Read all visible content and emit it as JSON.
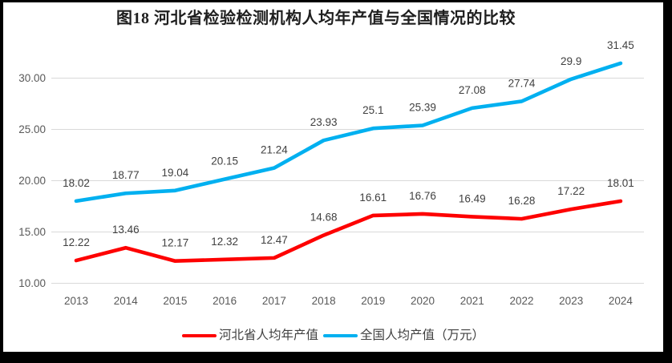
{
  "title": "图18 河北省检验检测机构人均年产值与全国情况的比较",
  "colors": {
    "hebei_red": "#fe0000",
    "national_blue": "#00b0f0",
    "gridline": "#d9d9d9",
    "axis_text": "#595959",
    "data_label_text": "#404040",
    "title_text": "#1f1f1f",
    "frame": "#000000",
    "background": "#ffffff"
  },
  "chart_data": {
    "type": "line",
    "title": "图18 河北省检验检测机构人均年产值与全国情况的比较",
    "categories": [
      "2013",
      "2014",
      "2015",
      "2016",
      "2017",
      "2018",
      "2019",
      "2020",
      "2021",
      "2022",
      "2023",
      "2024"
    ],
    "series": [
      {
        "name": "河北省人均年产值",
        "color": "#fe0000",
        "values": [
          12.22,
          13.46,
          12.17,
          12.32,
          12.47,
          14.68,
          16.61,
          16.76,
          16.49,
          16.28,
          17.22,
          18.01
        ]
      },
      {
        "name": "全国人均产值（万元）",
        "color": "#00b0f0",
        "values": [
          18.02,
          18.77,
          19.04,
          20.15,
          21.24,
          23.93,
          25.1,
          25.39,
          27.08,
          27.74,
          29.9,
          31.45
        ]
      }
    ],
    "xlabel": "",
    "ylabel": "",
    "ylim": [
      10,
      32.2
    ],
    "yticks": [
      10,
      15,
      20,
      25,
      30
    ],
    "ytick_labels": [
      "10.00",
      "15.00",
      "20.00",
      "25.00",
      "30.00"
    ],
    "grid": true,
    "data_labels": true,
    "legend_position": "bottom"
  }
}
